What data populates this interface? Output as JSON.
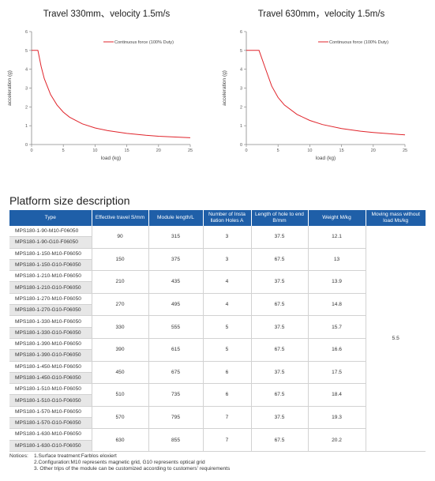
{
  "chart_data": [
    {
      "type": "line",
      "title": "Travel 330mm、velocity 1.5m/s",
      "xlabel": "load (kg)",
      "ylabel": "acceleration (g)",
      "xlim": [
        0,
        25
      ],
      "ylim": [
        0,
        6
      ],
      "x_ticks": [
        "0",
        "5",
        "10",
        "15",
        "20",
        "25"
      ],
      "y_ticks": [
        "0",
        "1",
        "2",
        "3",
        "4",
        "5",
        "6"
      ],
      "legend": "top-right",
      "grid": false,
      "series": [
        {
          "name": "Continuous force (100% Duty)",
          "color": "#e0242b",
          "x": [
            0,
            0.5,
            1,
            1.5,
            2,
            3,
            4,
            5,
            6,
            8,
            10,
            12,
            15,
            18,
            20,
            25
          ],
          "y": [
            5,
            5,
            5,
            4.15,
            3.5,
            2.65,
            2.1,
            1.72,
            1.45,
            1.1,
            0.88,
            0.74,
            0.59,
            0.49,
            0.44,
            0.36
          ]
        }
      ]
    },
    {
      "type": "line",
      "title": "Travel 630mm，velocity 1.5m/s",
      "xlabel": "load (kg)",
      "ylabel": "acceleration (g)",
      "xlim": [
        0,
        25
      ],
      "ylim": [
        0,
        6
      ],
      "x_ticks": [
        "0",
        "5",
        "10",
        "15",
        "20",
        "25"
      ],
      "y_ticks": [
        "0",
        "1",
        "2",
        "3",
        "4",
        "5",
        "6"
      ],
      "legend": "top-right",
      "grid": false,
      "series": [
        {
          "name": "Continuous force (100% Duty)",
          "color": "#e0242b",
          "x": [
            0,
            1,
            2,
            3,
            4,
            5,
            6,
            8,
            10,
            12,
            15,
            18,
            20,
            25
          ],
          "y": [
            5,
            5,
            5,
            4.05,
            3.1,
            2.5,
            2.1,
            1.6,
            1.28,
            1.06,
            0.85,
            0.71,
            0.64,
            0.51
          ]
        }
      ]
    }
  ],
  "section_title": "Platform size description",
  "table": {
    "headers": [
      "Type",
      "Effective travel S/mm",
      "Module length/L",
      "Number of Insta llation Holes A",
      "Length of hole to end B/mm",
      "Weight M/kg",
      "Moving mass without load Ms/kg"
    ],
    "moving_mass": "5.5",
    "groups": [
      {
        "types": [
          "MPS180-1-90-M10-F06050",
          "MPS180-1-90-G10-F06050"
        ],
        "travel": "90",
        "length": "315",
        "holes": "3",
        "hole_end": "37.5",
        "weight": "12.1"
      },
      {
        "types": [
          "MPS180-1-150-M10-F06050",
          "MPS180-1-150-G10-F06050"
        ],
        "travel": "150",
        "length": "375",
        "holes": "3",
        "hole_end": "67.5",
        "weight": "13"
      },
      {
        "types": [
          "MPS180-1-210-M10-F06050",
          "MPS180-1-210-G10-F06050"
        ],
        "travel": "210",
        "length": "435",
        "holes": "4",
        "hole_end": "37.5",
        "weight": "13.9"
      },
      {
        "types": [
          "MPS180-1-270-M10-F06050",
          "MPS180-1-270-G10-F06050"
        ],
        "travel": "270",
        "length": "495",
        "holes": "4",
        "hole_end": "67.5",
        "weight": "14.8"
      },
      {
        "types": [
          "MPS180-1-330-M10-F06050",
          "MPS180-1-330-G10-F06050"
        ],
        "travel": "330",
        "length": "555",
        "holes": "5",
        "hole_end": "37.5",
        "weight": "15.7"
      },
      {
        "types": [
          "MPS180-1-390-M10-F06050",
          "MPS180-1-390-G10-F06050"
        ],
        "travel": "390",
        "length": "615",
        "holes": "5",
        "hole_end": "67.5",
        "weight": "16.6"
      },
      {
        "types": [
          "MPS180-1-450-M10-F06050",
          "MPS180-1-450-G10-F06050"
        ],
        "travel": "450",
        "length": "675",
        "holes": "6",
        "hole_end": "37.5",
        "weight": "17.5"
      },
      {
        "types": [
          "MPS180-1-510-M10-F06050",
          "MPS180-1-510-G10-F06050"
        ],
        "travel": "510",
        "length": "735",
        "holes": "6",
        "hole_end": "67.5",
        "weight": "18.4"
      },
      {
        "types": [
          "MPS180-1-570-M10-F06050",
          "MPS180-1-570-G10-F06050"
        ],
        "travel": "570",
        "length": "795",
        "holes": "7",
        "hole_end": "37.5",
        "weight": "19.3"
      },
      {
        "types": [
          "MPS180-1-630-M10-F06050",
          "MPS180-1-630-G10-F06050"
        ],
        "travel": "630",
        "length": "855",
        "holes": "7",
        "hole_end": "67.5",
        "weight": "20.2"
      }
    ]
  },
  "notices": {
    "label": "Notices:",
    "lines": [
      "1.Surface treatment:Farblos eloxiert",
      "2.Configuration:M10 represents magnetic grid, G10 represents optical grid",
      "3. Other trips of the module can be customized according to customers' requirements"
    ]
  }
}
